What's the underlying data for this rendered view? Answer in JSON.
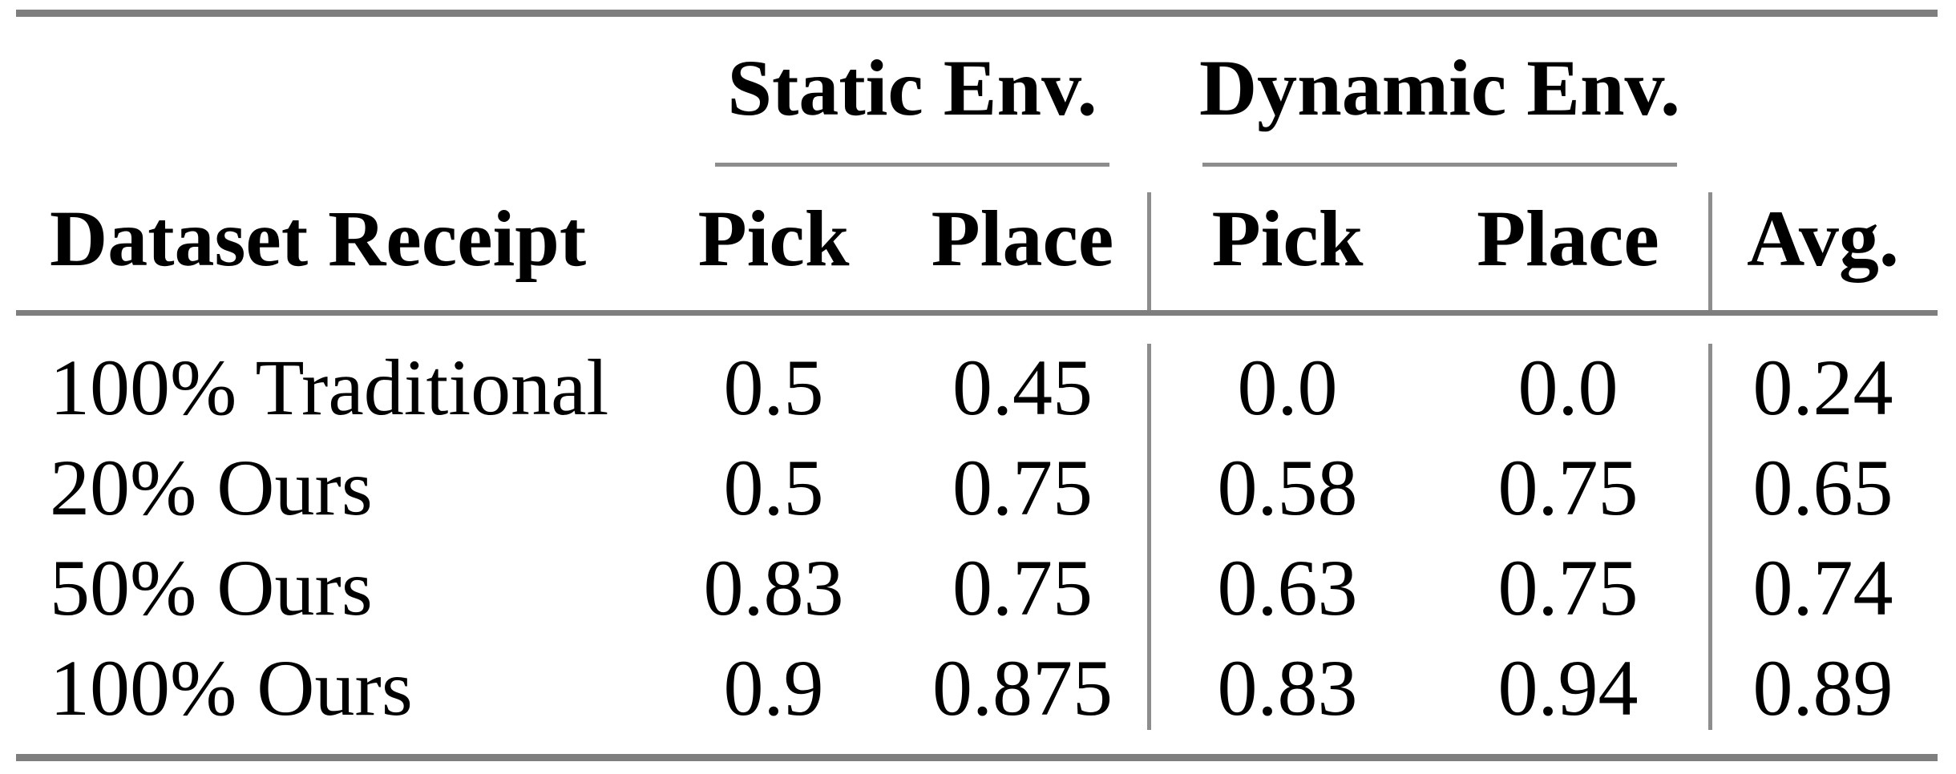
{
  "table": {
    "group_header": {
      "static": "Static Env.",
      "dynamic": "Dynamic Env."
    },
    "columns": {
      "label": "Dataset Receipt",
      "static_pick": "Pick",
      "static_place": "Place",
      "dynamic_pick": "Pick",
      "dynamic_place": "Place",
      "avg": "Avg."
    },
    "rows": [
      {
        "label": "100% Traditional",
        "static_pick": "0.5",
        "static_place": "0.45",
        "dynamic_pick": "0.0",
        "dynamic_place": "0.0",
        "avg": "0.24"
      },
      {
        "label": "20% Ours",
        "static_pick": "0.5",
        "static_place": "0.75",
        "dynamic_pick": "0.58",
        "dynamic_place": "0.75",
        "avg": "0.65"
      },
      {
        "label": "50% Ours",
        "static_pick": "0.83",
        "static_place": "0.75",
        "dynamic_pick": "0.63",
        "dynamic_place": "0.75",
        "avg": "0.74"
      },
      {
        "label": "100% Ours",
        "static_pick": "0.9",
        "static_place": "0.875",
        "dynamic_pick": "0.83",
        "dynamic_place": "0.94",
        "avg": "0.89"
      }
    ]
  },
  "colors": {
    "text": "#000000",
    "rule_heavy": "#7e7e7e",
    "rule_light": "#8d8d8d",
    "background": "#ffffff"
  }
}
